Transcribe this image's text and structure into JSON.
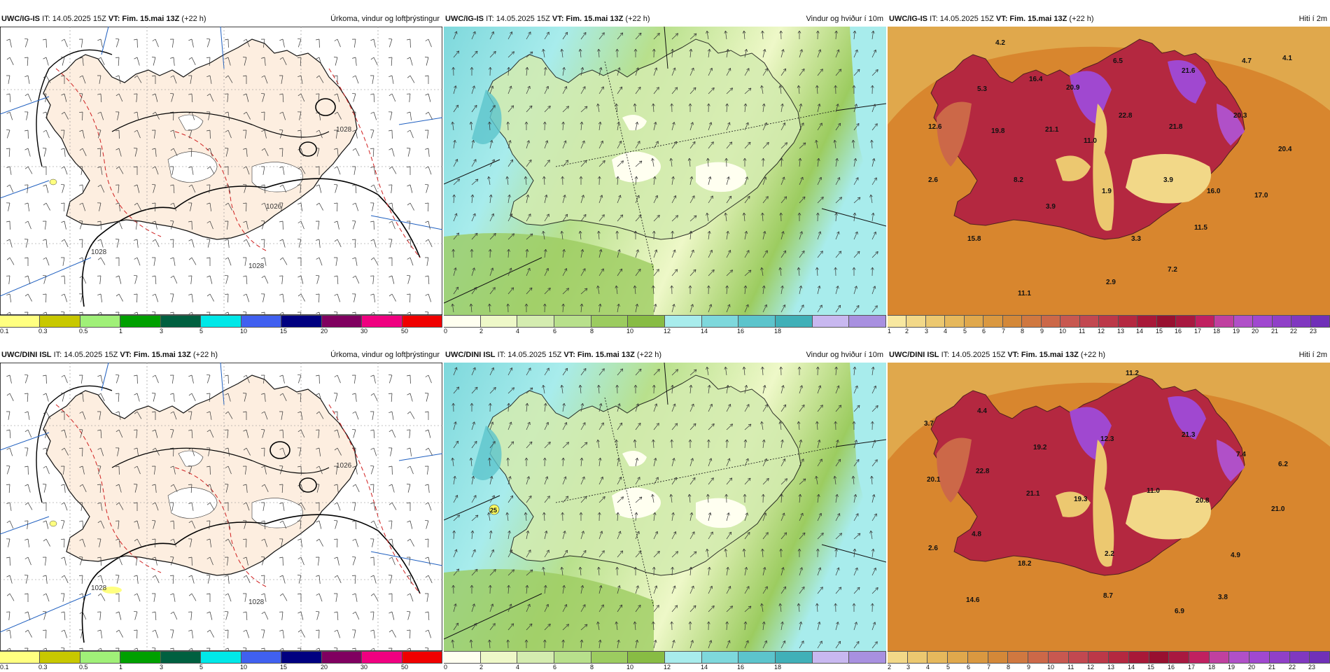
{
  "panels": [
    {
      "model": "UWC/IG-IS",
      "it": "IT: 14.05.2025 15Z",
      "vt_label": "VT:",
      "vt_value": "Fim. 15.mai 13Z",
      "lead": "(+22 h)",
      "product": "Úrkoma, vindur og loftþrýstingur",
      "kind": "precip",
      "colors": [
        "#ffff80",
        "#c8c800",
        "#a0f078",
        "#00a000",
        "#006040",
        "#00e8e8",
        "#4060f0",
        "#000080",
        "#800060",
        "#f00080",
        "#f00000"
      ],
      "ticks": [
        "0.1",
        "0.3",
        "0.5",
        "1",
        "3",
        "5",
        "10",
        "15",
        "20",
        "30",
        "50"
      ],
      "isobars": [
        "1028",
        "1028",
        "1028",
        "1026"
      ],
      "temp_labels": []
    },
    {
      "model": "UWC/IG-IS",
      "it": "IT: 14.05.2025 15Z",
      "vt_label": "VT:",
      "vt_value": "Fim. 15.mai 13Z",
      "lead": "(+22 h)",
      "product": "Vindur og hviður í 10m",
      "kind": "wind",
      "colors": [
        "#fffff0",
        "#eef8c8",
        "#d4ecb0",
        "#b8e08c",
        "#9ccc60",
        "#88bc44",
        "#a8ecec",
        "#7ed8dc",
        "#5cc4cc",
        "#40b0b8",
        "#c8b8f0",
        "#a890e0"
      ],
      "ticks": [
        "0",
        "2",
        "4",
        "6",
        "8",
        "10",
        "12",
        "14",
        "16",
        "18"
      ],
      "isobars": [],
      "temp_labels": []
    },
    {
      "model": "UWC/IG-IS",
      "it": "IT: 14.05.2025 15Z",
      "vt_label": "VT:",
      "vt_value": "Fim. 15.mai 13Z",
      "lead": "(+22 h)",
      "product": "Hiti í 2m",
      "kind": "temp",
      "colors": [
        "#f8e8a0",
        "#f2d888",
        "#ecc870",
        "#e6b85c",
        "#e0a84c",
        "#da9840",
        "#d48838",
        "#d07840",
        "#cc6848",
        "#c85850",
        "#c24850",
        "#bc3848",
        "#b42840",
        "#a81838",
        "#981030",
        "#a81840",
        "#c02060",
        "#c040a0",
        "#b050c8",
        "#a048d0",
        "#9040c8",
        "#8038c0",
        "#7030b8"
      ],
      "ticks": [
        "1",
        "2",
        "3",
        "4",
        "5",
        "6",
        "7",
        "8",
        "9",
        "10",
        "11",
        "12",
        "13",
        "14",
        "15",
        "16",
        "17",
        "18",
        "19",
        "20",
        "21",
        "22",
        "23"
      ],
      "isobars": [],
      "temp_labels": [
        "4.2",
        "5.3",
        "16.4",
        "20.9",
        "6.5",
        "21.6",
        "4.7",
        "4.1",
        "12.6",
        "19.8",
        "21.1",
        "11.0",
        "22.8",
        "21.8",
        "20.3",
        "20.4",
        "2.6",
        "8.2",
        "1.9",
        "3.9",
        "16.0",
        "17.0",
        "3.9",
        "15.8",
        "3.3",
        "11.5",
        "2.9",
        "7.2",
        "11.1"
      ]
    },
    {
      "model": "UWC/DINI ISL",
      "it": "IT: 14.05.2025 15Z",
      "vt_label": "VT:",
      "vt_value": "Fim. 15.mai 13Z",
      "lead": "(+22 h)",
      "product": "Úrkoma, vindur og loftþrýstingur",
      "kind": "precip",
      "colors": [
        "#ffff80",
        "#c8c800",
        "#a0f078",
        "#00a000",
        "#006040",
        "#00e8e8",
        "#4060f0",
        "#000080",
        "#800060",
        "#f00080",
        "#f00000"
      ],
      "ticks": [
        "0.1",
        "0.3",
        "0.5",
        "1",
        "3",
        "5",
        "10",
        "15",
        "20",
        "30",
        "50"
      ],
      "isobars": [
        "1028",
        "1026",
        "1028"
      ],
      "temp_labels": []
    },
    {
      "model": "UWC/DINI ISL",
      "it": "IT: 14.05.2025 15Z",
      "vt_label": "VT:",
      "vt_value": "Fim. 15.mai 13Z",
      "lead": "(+22 h)",
      "product": "Vindur og hviður í 10m",
      "kind": "wind",
      "colors": [
        "#fffff0",
        "#eef8c8",
        "#d4ecb0",
        "#b8e08c",
        "#9ccc60",
        "#88bc44",
        "#a8ecec",
        "#7ed8dc",
        "#5cc4cc",
        "#40b0b8",
        "#c8b8f0",
        "#a890e0"
      ],
      "ticks": [
        "0",
        "2",
        "4",
        "6",
        "8",
        "10",
        "12",
        "14",
        "16",
        "18"
      ],
      "isobars": [],
      "temp_labels": [
        "25"
      ]
    },
    {
      "model": "UWC/DINI ISL",
      "it": "IT: 14.05.2025 15Z",
      "vt_label": "VT:",
      "vt_value": "Fim. 15.mai 13Z",
      "lead": "(+22 h)",
      "product": "Hiti í 2m",
      "kind": "temp",
      "colors": [
        "#f2d888",
        "#ecc870",
        "#e6b85c",
        "#e0a84c",
        "#da9840",
        "#d48838",
        "#d07840",
        "#cc6848",
        "#c85850",
        "#c24850",
        "#bc3848",
        "#b42840",
        "#a81838",
        "#981030",
        "#a81840",
        "#c02060",
        "#c040a0",
        "#b050c8",
        "#a048d0",
        "#9040c8",
        "#8038c0",
        "#7030b8"
      ],
      "ticks": [
        "2",
        "3",
        "4",
        "5",
        "6",
        "7",
        "8",
        "9",
        "10",
        "11",
        "12",
        "13",
        "14",
        "15",
        "16",
        "17",
        "18",
        "19",
        "20",
        "21",
        "22",
        "23"
      ],
      "isobars": [],
      "temp_labels": [
        "11.2",
        "3.7",
        "4.4",
        "19.2",
        "12.3",
        "21.3",
        "7.4",
        "6.2",
        "20.1",
        "22.8",
        "21.1",
        "19.3",
        "11.0",
        "20.8",
        "21.0",
        "4.8",
        "2.6",
        "2.2",
        "18.2",
        "4.9",
        "14.6",
        "8.7",
        "3.8",
        "6.9"
      ]
    }
  ]
}
